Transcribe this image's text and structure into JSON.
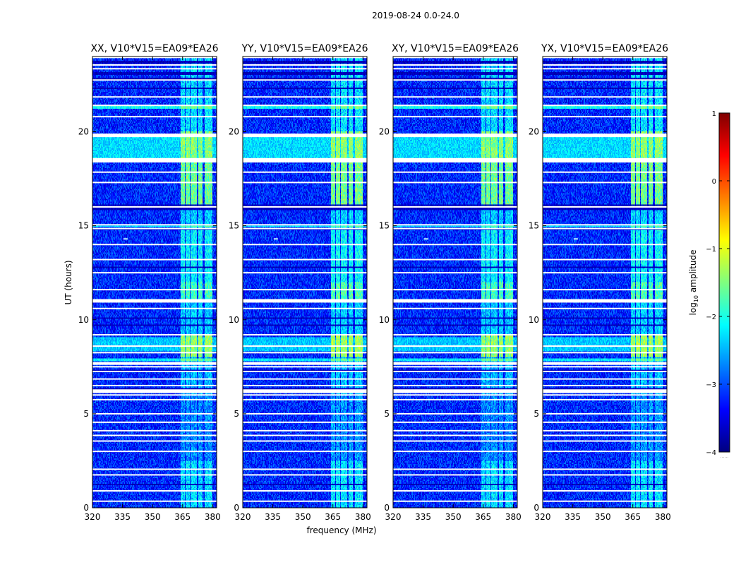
{
  "chart_data": {
    "type": "heatmap",
    "suptitle": "2019-08-24 0.0-24.0",
    "xlabel": "frequency (MHz)",
    "ylabel": "UT (hours)",
    "xlim": [
      320,
      382
    ],
    "ylim": [
      0,
      24
    ],
    "xticks": [
      320,
      335,
      350,
      365,
      380
    ],
    "yticks": [
      0,
      5,
      10,
      15,
      20
    ],
    "panels": [
      {
        "title": "XX, V10*V15=EA09*EA26",
        "polarization": "XX"
      },
      {
        "title": "YY, V10*V15=EA09*EA26",
        "polarization": "YY"
      },
      {
        "title": "XY, V10*V15=EA09*EA26",
        "polarization": "XY"
      },
      {
        "title": "YX, V10*V15=EA09*EA26",
        "polarization": "YX"
      }
    ],
    "colorbar": {
      "label": "log10 amplitude",
      "min": -4,
      "max": 1,
      "ticks": [
        1,
        0,
        -1,
        -2,
        -3,
        -4
      ],
      "colormap": "jet",
      "colors": [
        "#00007f",
        "#0000ff",
        "#007fff",
        "#00ffff",
        "#7fff7f",
        "#ffff00",
        "#ff7f00",
        "#ff0000",
        "#7f0000"
      ],
      "foot_text": "......"
    },
    "background_level": -3.2,
    "rfi_bands_mhz": [
      [
        364.0,
        366.0
      ],
      [
        366.5,
        368.5
      ],
      [
        369.0,
        372.0
      ],
      [
        373.0,
        375.0
      ],
      [
        376.0,
        380.0
      ]
    ],
    "blank_rows_hours": [
      0.35,
      0.9,
      1.75,
      2.05,
      3.0,
      3.55,
      3.85,
      4.1,
      4.55,
      5.0,
      5.75,
      6.0,
      6.2,
      6.5,
      6.85,
      7.25,
      7.5,
      7.7,
      8.25,
      8.6,
      9.2,
      10.6,
      10.95,
      11.0,
      11.6,
      12.5,
      13.2,
      14.0,
      14.85,
      15.05,
      16.0,
      17.3,
      17.85,
      18.4,
      18.55,
      19.75,
      19.85,
      20.8,
      21.4,
      21.85,
      22.75,
      23.35,
      23.55,
      23.95
    ],
    "dark_rows_hours": [
      1.25,
      4.1,
      6.3,
      7.3,
      9.7,
      10.1,
      12.8,
      14.8,
      15.9,
      16.1,
      22.3,
      22.8,
      23.1,
      23.7
    ],
    "enhanced_rows_hours": [
      [
        7.8,
        7.95,
        -2.2
      ],
      [
        8.3,
        9.1,
        -2.4
      ],
      [
        18.6,
        19.7,
        -2.3
      ],
      [
        21.25,
        21.35,
        -2.1
      ],
      [
        14.9,
        15.0,
        -2.3
      ]
    ],
    "rfi_strength_by_hour": [
      [
        0,
        2.5,
        -2.3
      ],
      [
        2.5,
        6,
        -2.7
      ],
      [
        6,
        8,
        -2.5
      ],
      [
        8,
        9.2,
        -1.4
      ],
      [
        9.2,
        11,
        -2.4
      ],
      [
        11,
        12,
        -1.8
      ],
      [
        12,
        15,
        -2.2
      ],
      [
        15,
        16,
        -2.4
      ],
      [
        16,
        18.5,
        -1.6
      ],
      [
        18.5,
        20,
        -1.5
      ],
      [
        20,
        24,
        -2.3
      ]
    ],
    "spot_feature": {
      "freq_mhz": 336.5,
      "hour": 14.3
    }
  }
}
